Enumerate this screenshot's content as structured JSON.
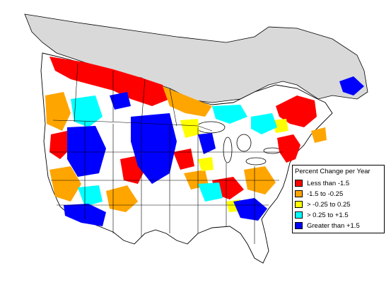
{
  "map": {
    "land_color": "#ffffff",
    "nodata_color": "#d9d9d9",
    "border_color": "#000000"
  },
  "legend": {
    "title": "Percent Change per Year",
    "items": [
      {
        "label": "Less than -1.5",
        "color": "#ff0000"
      },
      {
        "label": "-1.5 to -0.25",
        "color": "#ffa500"
      },
      {
        "label": "> -0.25 to 0.25",
        "color": "#ffff00"
      },
      {
        "label": "> 0.25 to +1.5",
        "color": "#00ffff"
      },
      {
        "label": "Greater than +1.5",
        "color": "#0000ff"
      }
    ]
  }
}
